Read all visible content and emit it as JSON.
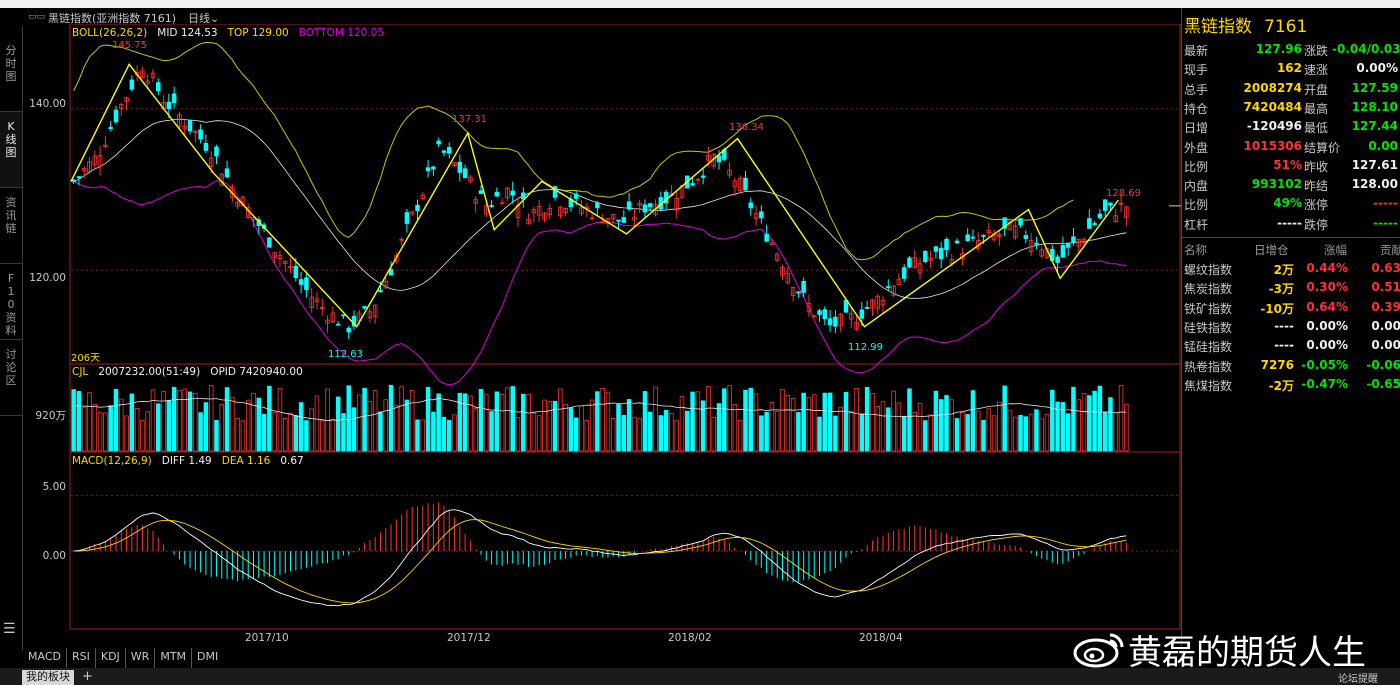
{
  "window": {
    "title": "黑链指数(亚洲指数 7161)",
    "period": "日线",
    "icon": "window-grid-icon"
  },
  "left_nav": [
    {
      "label": "分时图"
    },
    {
      "label": "K线图"
    },
    {
      "label": "资讯链"
    },
    {
      "label": "F10资料"
    },
    {
      "label": "讨论区"
    }
  ],
  "legend": {
    "boll": {
      "name": "BOLL(26,26,2)",
      "mid": "MID 124.53",
      "top": "TOP 129.00",
      "bottom": "BOTTOM 120.05"
    },
    "cjl": {
      "name": "CJL",
      "value": "2007232.00(51:49)",
      "opid": "OPID 7420940.00"
    },
    "macd": {
      "name": "MACD(12,26,9)",
      "diff": "DIFF 1.49",
      "dea": "DEA 1.16",
      "macd": "0.67"
    }
  },
  "axes": {
    "price_ticks": [
      "140.00",
      "120.00"
    ],
    "volume_tick": "920万",
    "macd_ticks": [
      "5.00",
      "0.00"
    ],
    "dates": [
      "2017/10",
      "2017/12",
      "2018/02",
      "2018/04"
    ],
    "day_count": "206天"
  },
  "annotations": {
    "high1": "145.75",
    "low1": "112.63",
    "high2": "137.31",
    "high3": "136.34",
    "low2": "112.99",
    "last": "128.69"
  },
  "quote": {
    "name": "黑链指数",
    "code": "7161",
    "rows": [
      {
        "l1": "最新",
        "v1": "127.96",
        "c1": "green",
        "l2": "涨跌",
        "v2": "-0.04/0.03%",
        "c2": "green"
      },
      {
        "l1": "现手",
        "v1": "162",
        "c1": "yellow",
        "l2": "速涨",
        "v2": "0.00%",
        "c2": "white"
      },
      {
        "l1": "总手",
        "v1": "2008274",
        "c1": "yellow",
        "l2": "开盘",
        "v2": "127.59",
        "c2": "green"
      },
      {
        "l1": "持仓",
        "v1": "7420484",
        "c1": "yellow",
        "l2": "最高",
        "v2": "128.10",
        "c2": "green"
      },
      {
        "l1": "日增",
        "v1": "-120496",
        "c1": "white",
        "l2": "最低",
        "v2": "127.44",
        "c2": "green"
      },
      {
        "l1": "外盘",
        "v1": "1015306",
        "c1": "red",
        "l2": "结算价",
        "v2": "0.00",
        "c2": "green"
      },
      {
        "l1": "比例",
        "v1": "51%",
        "c1": "red",
        "l2": "昨收",
        "v2": "127.61",
        "c2": "white"
      },
      {
        "l1": "内盘",
        "v1": "993102",
        "c1": "green",
        "l2": "昨结",
        "v2": "128.00",
        "c2": "white"
      },
      {
        "l1": "比例",
        "v1": "49%",
        "c1": "green",
        "l2": "涨停",
        "v2": "-----",
        "c2": "red"
      },
      {
        "l1": "杠杆",
        "v1": "-----",
        "c1": "white",
        "l2": "跌停",
        "v2": "-----",
        "c2": "green"
      }
    ]
  },
  "sectors": {
    "headers": [
      "名称",
      "日增仓",
      "涨幅",
      "贡献度"
    ],
    "rows": [
      {
        "name": "螺纹指数",
        "inc": "2万",
        "ci": "yellow",
        "chg": "0.44%",
        "cc": "red",
        "con": "0.63",
        "cn": "red"
      },
      {
        "name": "焦炭指数",
        "inc": "-3万",
        "ci": "yellow",
        "chg": "0.30%",
        "cc": "red",
        "con": "0.51",
        "cn": "red"
      },
      {
        "name": "铁矿指数",
        "inc": "-10万",
        "ci": "yellow",
        "chg": "0.64%",
        "cc": "red",
        "con": "0.39",
        "cn": "red"
      },
      {
        "name": "硅铁指数",
        "inc": "----",
        "ci": "white",
        "chg": "0.00%",
        "cc": "white",
        "con": "0.00",
        "cn": "white"
      },
      {
        "name": "锰硅指数",
        "inc": "----",
        "ci": "white",
        "chg": "0.00%",
        "cc": "white",
        "con": "0.00",
        "cn": "white"
      },
      {
        "name": "热卷指数",
        "inc": "7276",
        "ci": "yellow",
        "chg": "-0.05%",
        "cc": "green",
        "con": "-0.06",
        "cn": "green"
      },
      {
        "name": "焦煤指数",
        "inc": "-2万",
        "ci": "yellow",
        "chg": "-0.47%",
        "cc": "green",
        "con": "-0.65",
        "cn": "green"
      }
    ]
  },
  "bottom_tabs": [
    "MACD",
    "RSI",
    "KDJ",
    "WR",
    "MTM",
    "DMI"
  ],
  "bottom_bar": {
    "active_tab": "我的板块",
    "plus": "+",
    "right": "论坛提醒"
  },
  "watermark": "黄磊的期货人生",
  "colors": {
    "up": "#ff3232",
    "down": "#00ffff",
    "boll_band": "#c8c800",
    "boll_mid": "#e8e8e8",
    "boll_bottom": "#e000e0",
    "zigzag": "#ffff00",
    "accent": "#ffd700"
  },
  "chart_data": {
    "type": "candlestick",
    "title": "黑链指数(亚洲指数 7161)",
    "period": "日线",
    "x_range": [
      "2017/09",
      "2018/05"
    ],
    "ylim": [
      109,
      150
    ],
    "price_key_points": [
      {
        "label": "high",
        "value": 145.75
      },
      {
        "label": "low",
        "value": 112.63
      },
      {
        "label": "high",
        "value": 137.31
      },
      {
        "label": "high",
        "value": 136.34
      },
      {
        "label": "low",
        "value": 112.99
      },
      {
        "label": "last",
        "value": 128.69
      }
    ],
    "close_path": [
      131,
      134,
      140,
      145.5,
      141,
      138,
      135,
      130,
      126,
      122,
      118,
      115,
      113,
      115,
      121,
      128,
      135,
      132,
      128,
      130,
      127,
      129,
      128,
      127,
      126,
      128,
      129,
      131,
      134,
      131,
      126,
      121,
      116,
      113,
      114,
      116,
      119,
      121,
      122,
      123,
      124,
      125,
      124,
      121,
      124,
      127,
      128
    ],
    "boll": {
      "mid": 124.53,
      "top": 129.0,
      "bottom": 120.05
    },
    "volume": {
      "value": 2007232.0,
      "open_interest": 7420940.0,
      "unit_tick": "920万"
    },
    "macd": {
      "diff": 1.49,
      "dea": 1.16,
      "macd": 0.67,
      "ylim": [
        -7,
        8
      ]
    }
  }
}
